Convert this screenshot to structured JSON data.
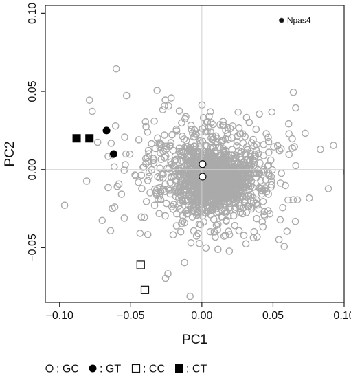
{
  "chart_data": {
    "type": "scatter",
    "xlabel": "PC1",
    "ylabel": "PC2",
    "xlim": [
      -0.11,
      0.1
    ],
    "ylim": [
      -0.085,
      0.105
    ],
    "x_ticks": [
      -0.1,
      -0.05,
      0.0,
      0.05,
      0.1
    ],
    "x_tick_labels": [
      "−0.10",
      "−0.05",
      "0.00",
      "0.05",
      "0.10"
    ],
    "y_ticks": [
      -0.05,
      0.0,
      0.05,
      0.1
    ],
    "y_tick_labels": [
      "−0.05",
      "0.00",
      "0.05",
      "0.10"
    ],
    "grid": false,
    "reference_lines": {
      "x": 0.0,
      "y": 0.0
    },
    "background": {
      "description_count": 1500,
      "center": [
        0.01,
        -0.007
      ],
      "color": "#aaaaaa"
    },
    "series": [
      {
        "name": "GC",
        "marker": "circle-open",
        "points": [
          {
            "x": 0.0005,
            "y": 0.0035
          },
          {
            "x": 0.0005,
            "y": -0.0045
          }
        ]
      },
      {
        "name": "GT",
        "marker": "circle-filled",
        "points": [
          {
            "x": -0.067,
            "y": 0.025
          },
          {
            "x": -0.062,
            "y": 0.01
          }
        ]
      },
      {
        "name": "CC",
        "marker": "square-open",
        "points": [
          {
            "x": -0.043,
            "y": -0.061
          },
          {
            "x": -0.04,
            "y": -0.077
          }
        ]
      },
      {
        "name": "CT",
        "marker": "square-filled",
        "points": [
          {
            "x": -0.088,
            "y": 0.02
          },
          {
            "x": -0.079,
            "y": 0.02
          }
        ]
      }
    ],
    "annotations": [
      {
        "text": "Npas4",
        "x": 0.056,
        "y": 0.0955
      }
    ],
    "legend": {
      "placement": "bottom-left",
      "items": [
        {
          "symbol": "circle-open",
          "label": ": GC"
        },
        {
          "symbol": "circle-filled",
          "label": ": GT"
        },
        {
          "symbol": "square-open",
          "label": ": CC"
        },
        {
          "symbol": "square-filled",
          "label": ": CT"
        }
      ]
    }
  }
}
